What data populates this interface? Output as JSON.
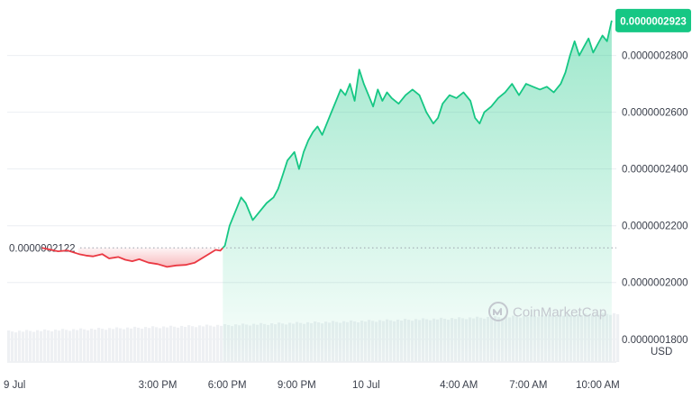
{
  "chart_data": {
    "type": "area",
    "currency_label": "USD",
    "watermark": "CoinMarketCap",
    "reference_price": 2.122e-07,
    "reference_label": "0.0000002122",
    "current_price_label": "0.0000002923",
    "ylim": [
      1.72e-07,
      2.97e-07
    ],
    "y_ticks": [
      {
        "value": 2.8e-07,
        "label": "0.0000002800"
      },
      {
        "value": 2.6e-07,
        "label": "0.0000002600"
      },
      {
        "value": 2.4e-07,
        "label": "0.0000002400"
      },
      {
        "value": 2.2e-07,
        "label": "0.0000002200"
      },
      {
        "value": 2e-07,
        "label": "0.0000002000"
      },
      {
        "value": 1.8e-07,
        "label": "0.0000001800"
      }
    ],
    "xlim_hours": [
      8.5,
      34.8
    ],
    "x_ticks": [
      {
        "hour": 12.5,
        "label": "9 Jul"
      },
      {
        "hour": 15,
        "label": "3:00 PM"
      },
      {
        "hour": 18,
        "label": "6:00 PM"
      },
      {
        "hour": 21,
        "label": "9:00 PM"
      },
      {
        "hour": 24,
        "label": "10 Jul"
      },
      {
        "hour": 28,
        "label": "4:00 AM"
      },
      {
        "hour": 31,
        "label": "7:00 AM"
      },
      {
        "hour": 34,
        "label": "10:00 AM"
      }
    ],
    "colors": {
      "up": "#16c784",
      "down": "#ea3943",
      "up_fill": "#16c784",
      "down_fill": "#ea3943",
      "grid": "#eceef2",
      "reference_line": "#9aa0ab",
      "badge": "#16c784",
      "volume": "#eef0f3"
    },
    "series": [
      {
        "x": [
          10.0,
          10.7,
          11.1,
          11.6,
          11.9,
          12.2,
          12.6,
          12.9,
          13.3,
          13.6,
          13.9,
          14.2,
          14.6,
          15.0,
          15.4,
          15.8,
          16.2,
          16.6,
          17.0,
          17.2,
          17.5,
          17.7,
          17.9,
          18.1,
          18.4,
          18.6,
          18.8,
          19.1,
          19.4,
          19.7,
          20.0,
          20.2,
          20.4,
          20.6,
          20.9,
          21.1,
          21.3,
          21.5,
          21.7,
          21.9,
          22.1,
          22.3,
          22.5,
          22.7,
          22.9,
          23.1,
          23.3,
          23.5,
          23.7,
          23.9,
          24.1,
          24.3,
          24.5,
          24.7,
          24.9,
          25.1,
          25.4,
          25.7,
          26.0,
          26.3,
          26.6,
          26.9,
          27.1,
          27.3,
          27.6,
          27.9,
          28.2,
          28.5,
          28.7,
          28.9,
          29.1,
          29.4,
          29.7,
          30.0,
          30.3,
          30.6,
          30.9,
          31.2,
          31.5,
          31.8,
          32.1,
          32.4,
          32.6,
          32.8,
          33.0,
          33.2,
          33.4,
          33.6,
          33.8,
          34.0,
          34.2,
          34.4,
          34.6
        ],
        "y": [
          2.122e-07,
          2.11e-07,
          2.113e-07,
          2.1e-07,
          2.095e-07,
          2.092e-07,
          2.1e-07,
          2.085e-07,
          2.09e-07,
          2.08e-07,
          2.075e-07,
          2.082e-07,
          2.07e-07,
          2.065e-07,
          2.055e-07,
          2.06e-07,
          2.062e-07,
          2.07e-07,
          2.09e-07,
          2.1e-07,
          2.115e-07,
          2.112e-07,
          2.13e-07,
          2.2e-07,
          2.26e-07,
          2.3e-07,
          2.28e-07,
          2.22e-07,
          2.25e-07,
          2.28e-07,
          2.3e-07,
          2.33e-07,
          2.38e-07,
          2.43e-07,
          2.46e-07,
          2.4e-07,
          2.46e-07,
          2.5e-07,
          2.53e-07,
          2.55e-07,
          2.52e-07,
          2.56e-07,
          2.6e-07,
          2.64e-07,
          2.68e-07,
          2.66e-07,
          2.7e-07,
          2.64e-07,
          2.75e-07,
          2.7e-07,
          2.66e-07,
          2.62e-07,
          2.68e-07,
          2.64e-07,
          2.67e-07,
          2.65e-07,
          2.63e-07,
          2.66e-07,
          2.68e-07,
          2.66e-07,
          2.6e-07,
          2.56e-07,
          2.58e-07,
          2.63e-07,
          2.66e-07,
          2.65e-07,
          2.67e-07,
          2.64e-07,
          2.58e-07,
          2.56e-07,
          2.6e-07,
          2.62e-07,
          2.65e-07,
          2.67e-07,
          2.7e-07,
          2.66e-07,
          2.7e-07,
          2.69e-07,
          2.68e-07,
          2.69e-07,
          2.67e-07,
          2.7e-07,
          2.74e-07,
          2.8e-07,
          2.85e-07,
          2.8e-07,
          2.83e-07,
          2.86e-07,
          2.81e-07,
          2.84e-07,
          2.87e-07,
          2.85e-07,
          2.923e-07
        ]
      }
    ],
    "legend": "none",
    "grid": true
  }
}
